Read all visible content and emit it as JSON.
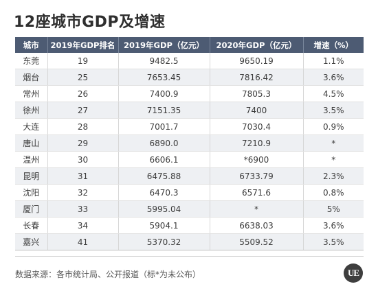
{
  "title": "12座城市GDP及增速",
  "table": {
    "headers": [
      "城市",
      "2019年GDP排名",
      "2019年GDP（亿元）",
      "2020年GDP（亿元）",
      "增速（%）"
    ],
    "rows": [
      [
        "东莞",
        "19",
        "9482.5",
        "9650.19",
        "1.1%"
      ],
      [
        "烟台",
        "25",
        "7653.45",
        "7816.42",
        "3.6%"
      ],
      [
        "常州",
        "26",
        "7400.9",
        "7805.3",
        "4.5%"
      ],
      [
        "徐州",
        "27",
        "7151.35",
        "7400",
        "3.5%"
      ],
      [
        "大连",
        "28",
        "7001.7",
        "7030.4",
        "0.9%"
      ],
      [
        "唐山",
        "29",
        "6890.0",
        "7210.9",
        "*"
      ],
      [
        "温州",
        "30",
        "6606.1",
        "*6900",
        "*"
      ],
      [
        "昆明",
        "31",
        "6475.88",
        "6733.79",
        "2.3%"
      ],
      [
        "沈阳",
        "32",
        "6470.3",
        "6571.6",
        "0.8%"
      ],
      [
        "厦门",
        "33",
        "5995.04",
        "*",
        "5%"
      ],
      [
        "长春",
        "34",
        "5904.1",
        "6638.03",
        "3.6%"
      ],
      [
        "嘉兴",
        "41",
        "5370.32",
        "5509.52",
        "3.5%"
      ]
    ]
  },
  "source": "数据来源：各市统计局、公开报道（标*为未公布）",
  "logo_text": "UE",
  "colors": {
    "header_bg": "#4d5b73",
    "stripe_bg": "#eef0f3"
  }
}
